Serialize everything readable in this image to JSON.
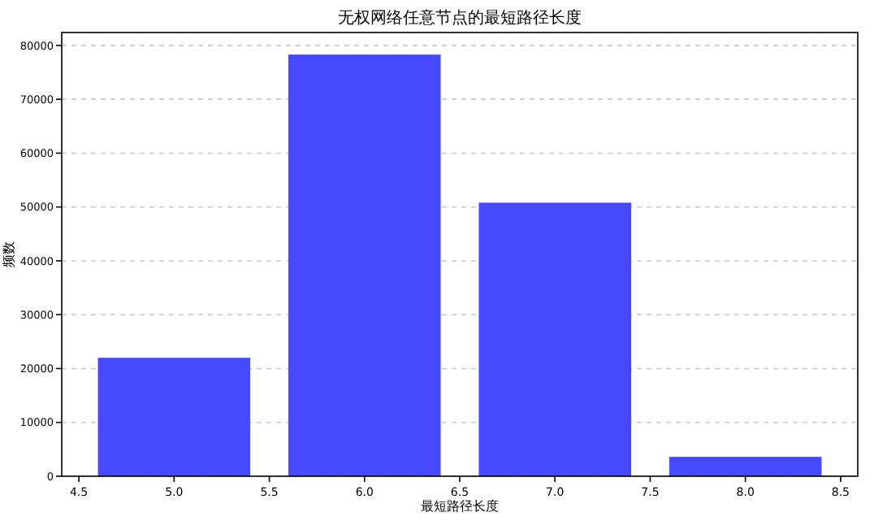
{
  "chart_data": {
    "type": "bar",
    "title": "无权网络任意节点的最短路径长度",
    "xlabel": "最短路径长度",
    "ylabel": "频数",
    "x": [
      5.0,
      6.0,
      7.0,
      8.0
    ],
    "values": [
      22000,
      78300,
      50800,
      3600
    ],
    "color": "#4848ff",
    "xlim": [
      4.41,
      8.59
    ],
    "xticks": [
      {
        "value": 4.5,
        "label": "4.5"
      },
      {
        "value": 5.0,
        "label": "5.0"
      },
      {
        "value": 5.5,
        "label": "5.5"
      },
      {
        "value": 6.0,
        "label": "6.0"
      },
      {
        "value": 6.5,
        "label": "6.5"
      },
      {
        "value": 7.0,
        "label": "7.0"
      },
      {
        "value": 7.5,
        "label": "7.5"
      },
      {
        "value": 8.0,
        "label": "8.0"
      },
      {
        "value": 8.5,
        "label": "8.5"
      }
    ],
    "ylim": [
      0,
      82400
    ],
    "yticks": [
      0,
      10000,
      20000,
      30000,
      40000,
      50000,
      60000,
      70000,
      80000
    ],
    "grid": "y"
  }
}
